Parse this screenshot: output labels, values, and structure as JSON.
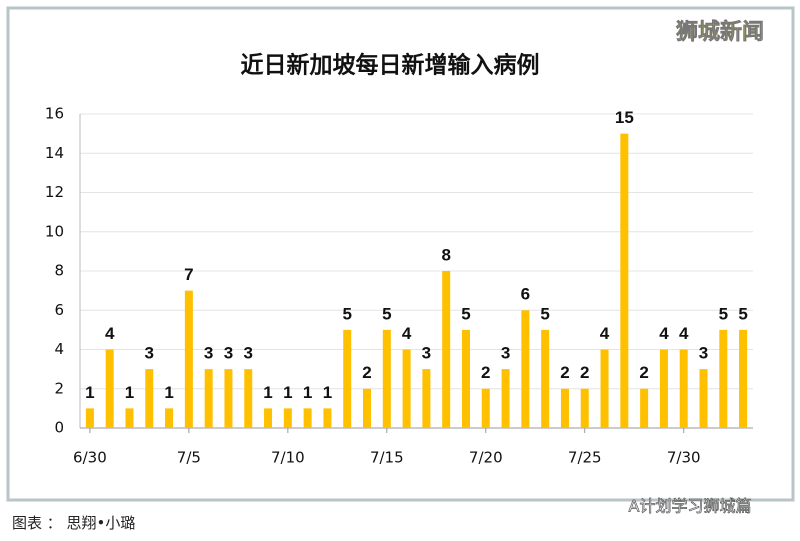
{
  "chart_data": {
    "type": "bar",
    "title": "近日新加坡每日新增输入病例",
    "categories": [
      "6/30",
      null,
      null,
      null,
      null,
      "7/5",
      null,
      null,
      null,
      null,
      "7/10",
      null,
      null,
      null,
      null,
      "7/15",
      null,
      null,
      null,
      null,
      "7/20",
      null,
      null,
      null,
      null,
      "7/25",
      null,
      null,
      null,
      null,
      "7/30",
      null,
      null,
      null
    ],
    "values": [
      1,
      4,
      1,
      3,
      1,
      7,
      3,
      3,
      3,
      1,
      1,
      1,
      1,
      5,
      2,
      5,
      4,
      3,
      8,
      5,
      2,
      3,
      6,
      5,
      2,
      2,
      4,
      15,
      2,
      4,
      4,
      3,
      5,
      5
    ],
    "color": "#ffc000",
    "ylim": [
      0,
      16
    ],
    "yticks": [
      0,
      2,
      4,
      6,
      8,
      10,
      12,
      14,
      16
    ],
    "grid": true
  },
  "watermark": "狮城新闻",
  "footer_credit": "图表 ： 思翔•小璐",
  "source_tag": "A计划学习狮城篇"
}
